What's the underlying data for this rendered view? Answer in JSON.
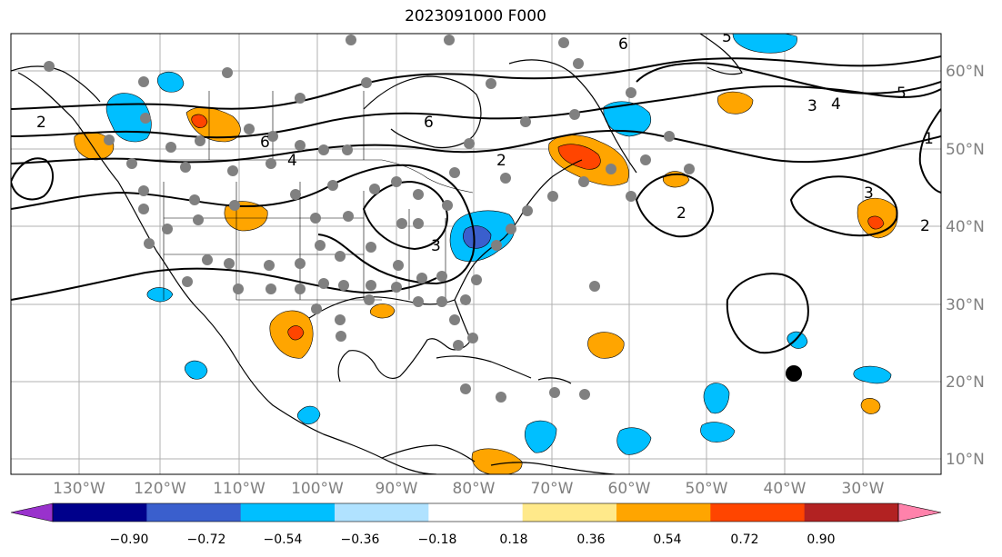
{
  "title": "2023091000 F000",
  "lon_labels": [
    "130°W",
    "120°W",
    "110°W",
    "100°W",
    "90°W",
    "80°W",
    "70°W",
    "60°W",
    "50°W",
    "40°W",
    "30°W"
  ],
  "lat_labels": [
    "60°N",
    "50°N",
    "40°N",
    "30°N",
    "20°N",
    "10°N"
  ],
  "colorbar": {
    "ticks": [
      "−0.90",
      "−0.72",
      "−0.54",
      "−0.36",
      "−0.18",
      "0.18",
      "0.36",
      "0.54",
      "0.72",
      "0.90"
    ],
    "colors": [
      "#9932cc",
      "#00008b",
      "#3a5fcd",
      "#00bfff",
      "#b0e2ff",
      "#ffffff",
      "#ffe98a",
      "#ffa500",
      "#ff4500",
      "#b22222",
      "#ff82ab"
    ]
  },
  "contour_labels": [
    "6",
    "6",
    "6",
    "5",
    "5",
    "4",
    "4",
    "3",
    "3",
    "3",
    "2",
    "2",
    "2",
    "2",
    "1"
  ],
  "palette": {
    "orange": "#ffa500",
    "red": "#ff4500",
    "light_blue": "#00bfff",
    "mid_blue": "#3a5fcd",
    "station_dot": "#808080",
    "grid": "#b0b0b0"
  }
}
